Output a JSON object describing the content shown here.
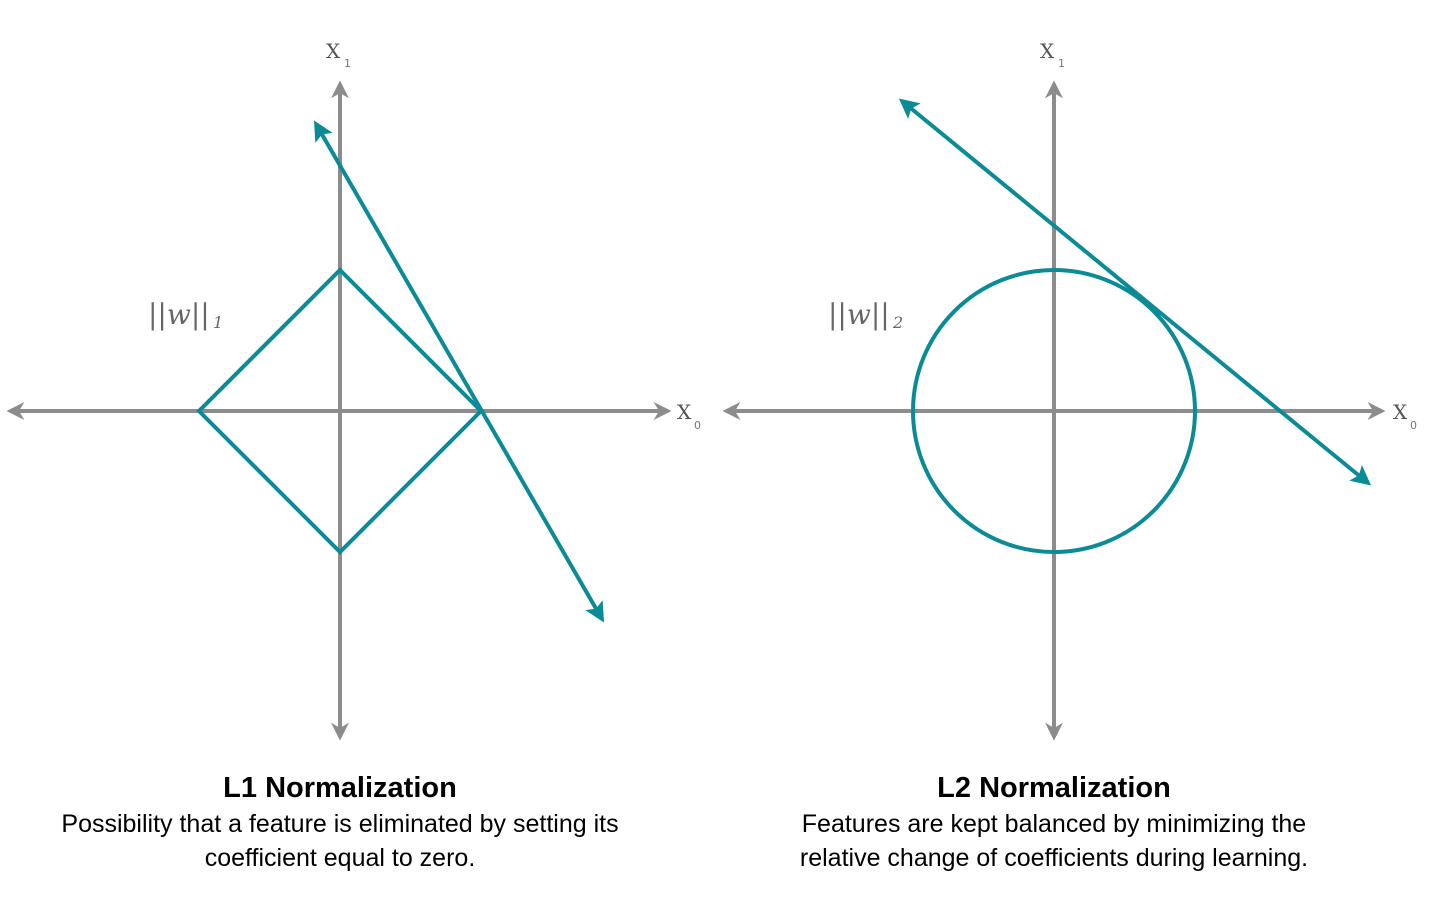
{
  "colors": {
    "axis": "#8c8c8c",
    "accent": "#0a8b96"
  },
  "left": {
    "x1_label": "X",
    "x1_sub": "1",
    "x0_label": "X",
    "x0_sub": "0",
    "norm_label": "||w||",
    "norm_sub": "1",
    "title": "L1 Normalization",
    "desc_line1": "Possibility that a feature is eliminated by setting its",
    "desc_line2": "coefficient equal to zero."
  },
  "right": {
    "x1_label": "X",
    "x1_sub": "1",
    "x0_label": "X",
    "x0_sub": "0",
    "norm_label": "||w||",
    "norm_sub": "2",
    "title": "L2 Normalization",
    "desc_line1": "Features are kept balanced by minimizing the",
    "desc_line2": "relative change of coefficients during learning."
  }
}
